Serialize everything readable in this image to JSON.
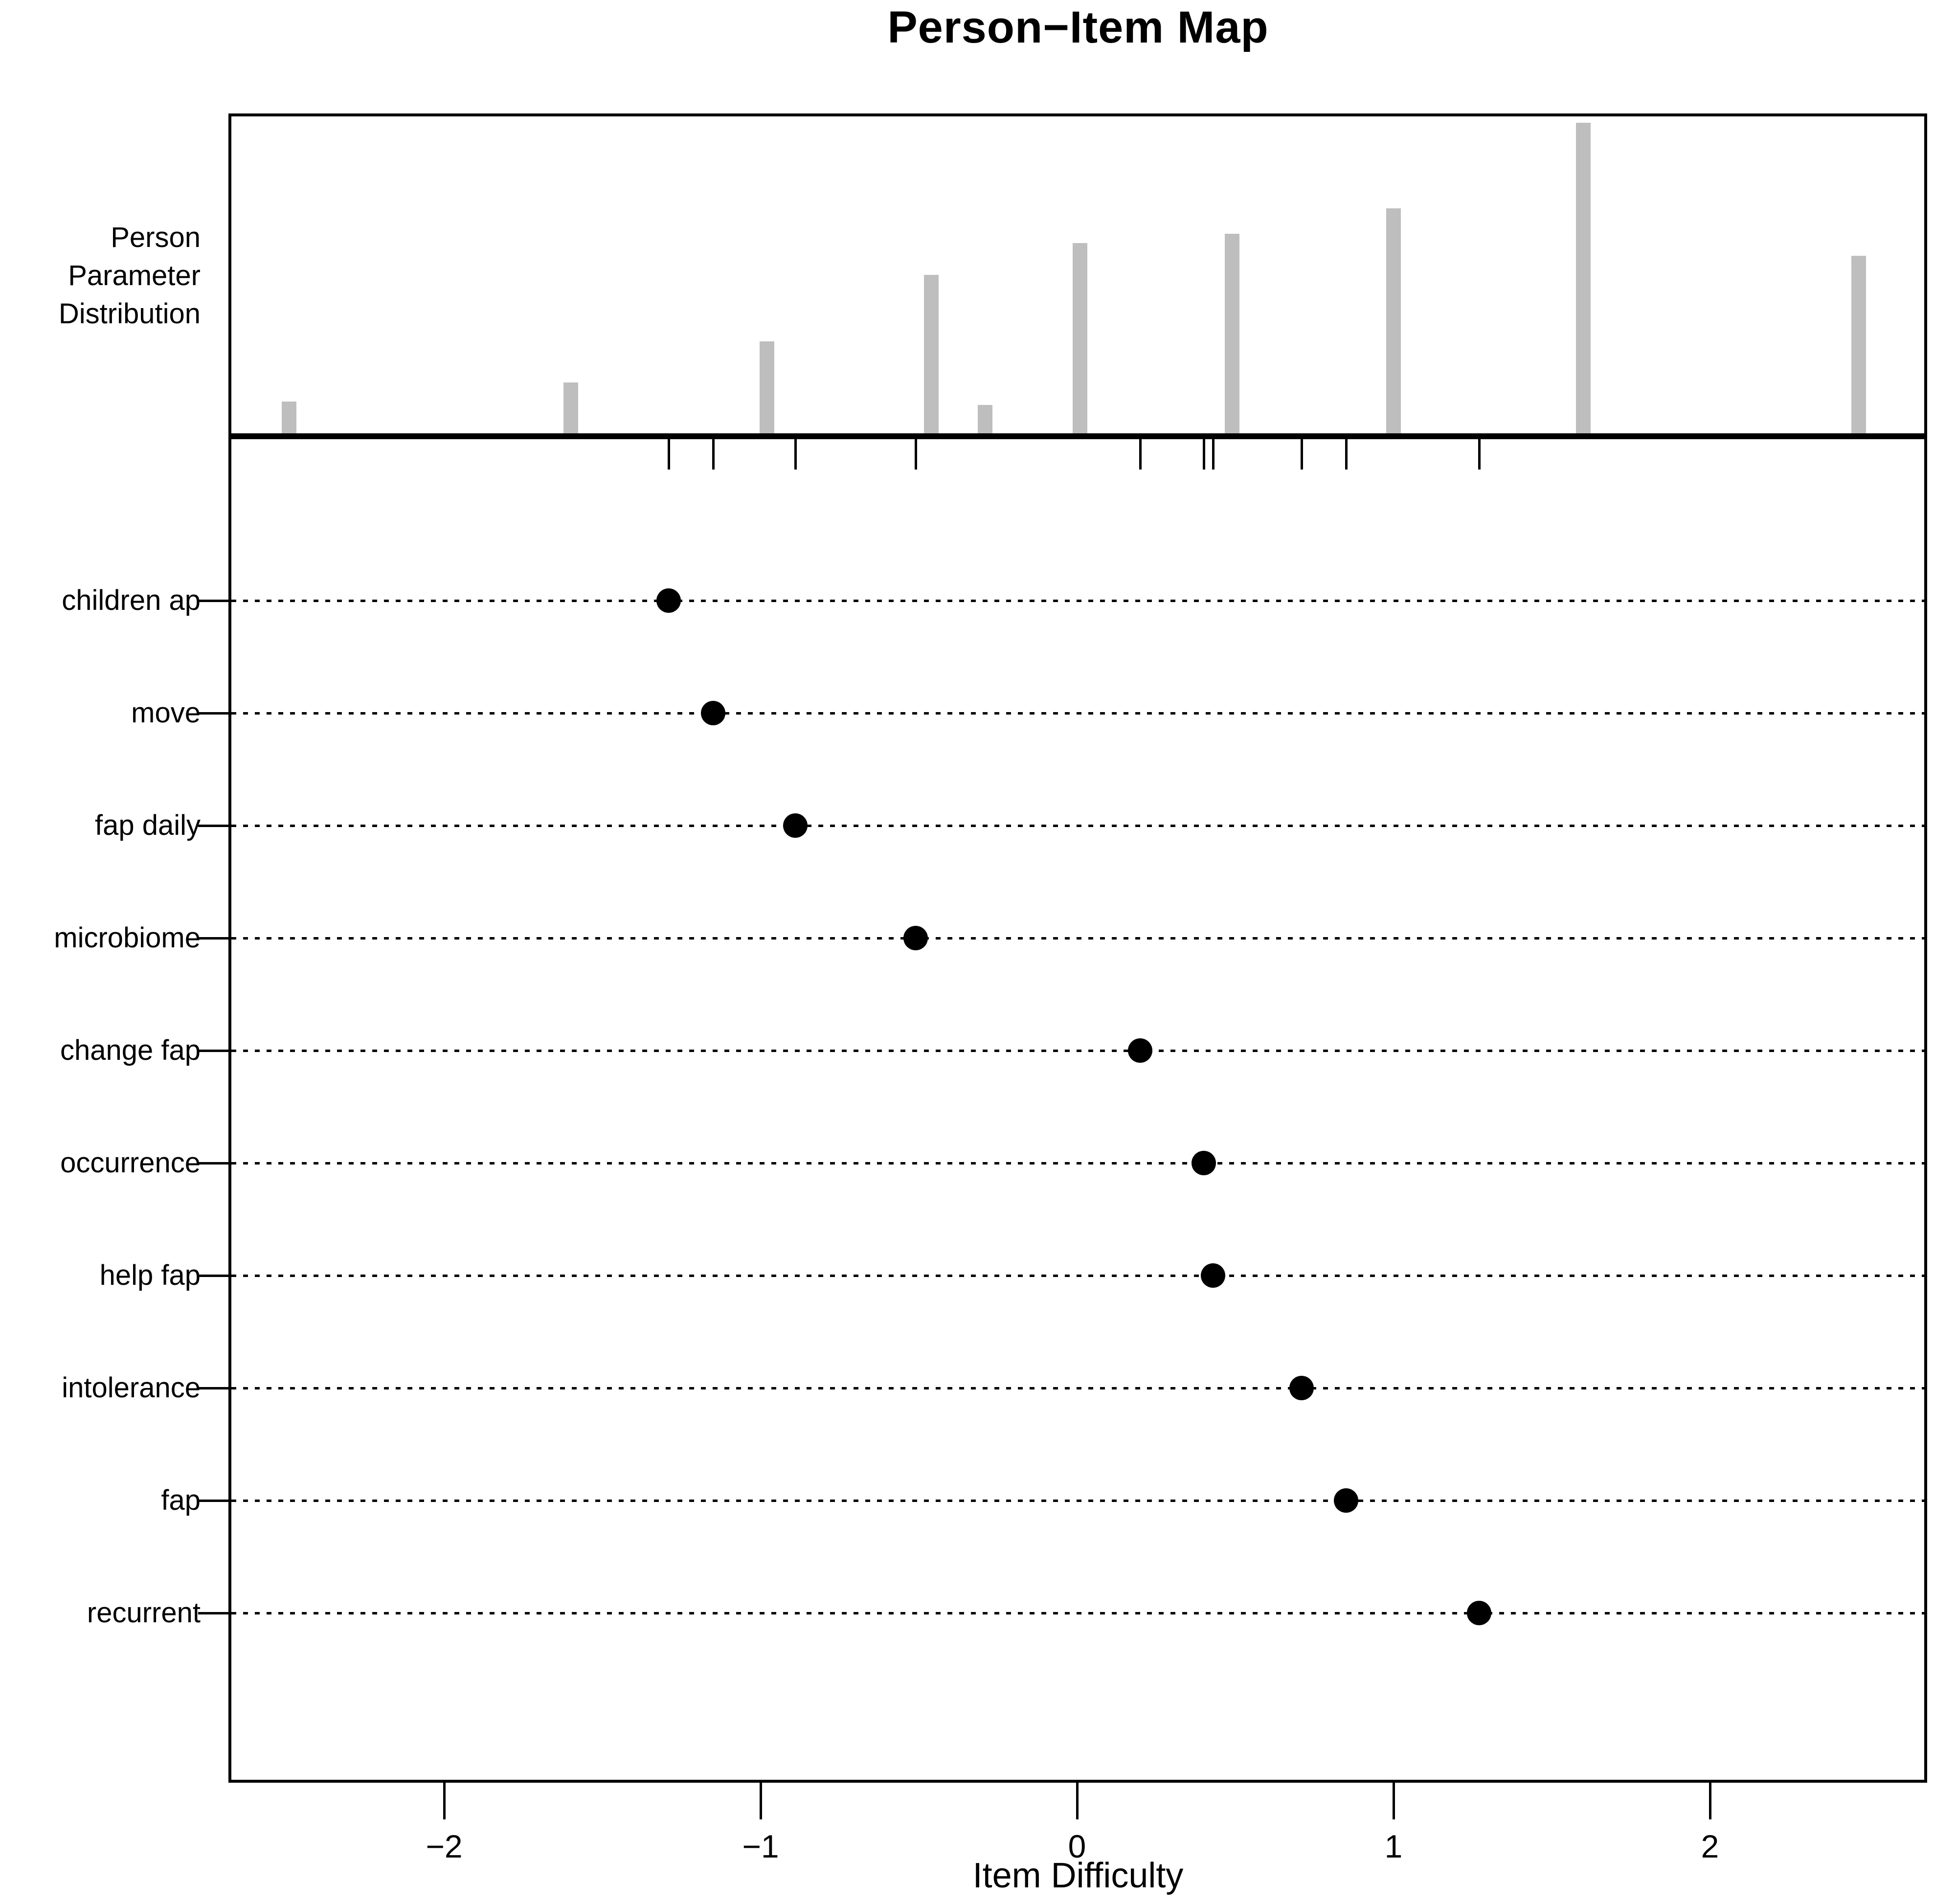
{
  "title": "Person−Item Map",
  "colors": {
    "background": "#ffffff",
    "bar": "#bebebe",
    "dot": "#000000",
    "line": "#000000"
  },
  "chart_data": [
    {
      "type": "bar",
      "panel": "person-parameter-distribution",
      "label_lines": [
        "Person",
        "Parameter",
        "Distribution"
      ],
      "x": [
        -2.49,
        -1.6,
        -0.98,
        -0.46,
        -0.29,
        0.01,
        0.49,
        1.0,
        1.6,
        2.47
      ],
      "relative_heights": [
        0.1,
        0.16,
        0.29,
        0.5,
        0.09,
        0.6,
        0.63,
        0.71,
        0.98,
        0.56
      ],
      "bar_color": "#bebebe",
      "xlim": [
        -2.68,
        2.69
      ],
      "grid": false,
      "yaxis_shown": false
    },
    {
      "type": "scatter",
      "panel": "item-difficulty-map",
      "xlabel": "Item Difficulty",
      "x_ticks": [
        -2,
        -1,
        0,
        1,
        2
      ],
      "x_tick_labels": [
        "−2",
        "−1",
        "0",
        "1",
        "2"
      ],
      "dot_color": "#000000",
      "row_line_style": "dotted",
      "items": [
        {
          "label": "children ap",
          "difficulty": -1.29
        },
        {
          "label": "move",
          "difficulty": -1.15
        },
        {
          "label": "fap daily",
          "difficulty": -0.89
        },
        {
          "label": "microbiome",
          "difficulty": -0.51
        },
        {
          "label": "change fap",
          "difficulty": 0.2
        },
        {
          "label": "occurrence",
          "difficulty": 0.4
        },
        {
          "label": "help fap",
          "difficulty": 0.43
        },
        {
          "label": "intolerance",
          "difficulty": 0.71
        },
        {
          "label": "fap",
          "difficulty": 0.85
        },
        {
          "label": "recurrent",
          "difficulty": 1.27
        }
      ]
    }
  ]
}
